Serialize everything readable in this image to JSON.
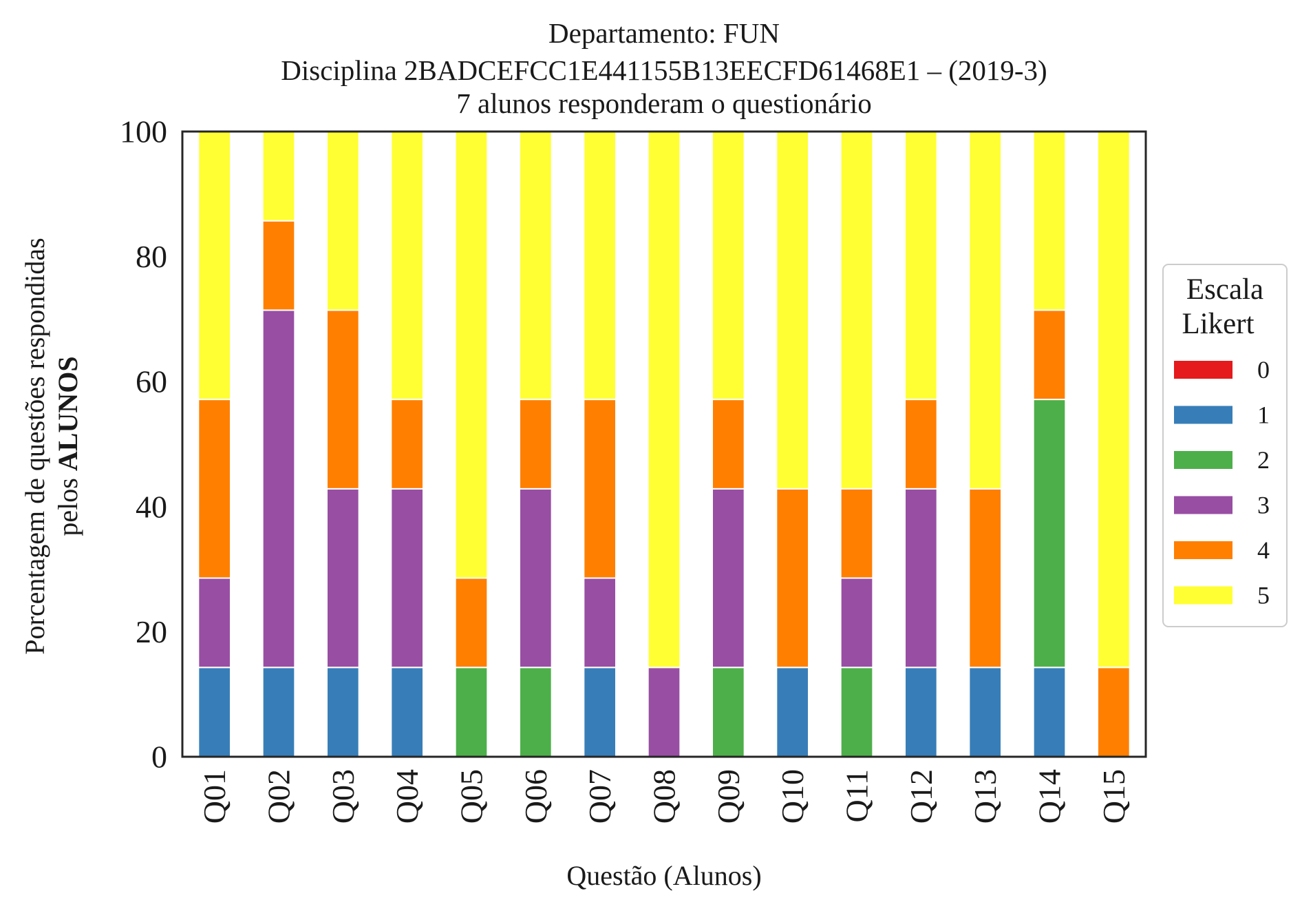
{
  "chart_data": {
    "type": "bar",
    "stacked": true,
    "title_lines": [
      "Departamento: FUN",
      "Disciplina 2BADCEFCC1E441155B13EECFD61468E1 – (2019-3)",
      "7 alunos responderam o questionário"
    ],
    "xlabel": "Questão (Alunos)",
    "ylabel_line1": "Porcentagem de questões respondidas",
    "ylabel_line2_prefix": "pelos ",
    "ylabel_line2_bold": "ALUNOS",
    "ylim": [
      0,
      100
    ],
    "yticks": [
      "0",
      "20",
      "40",
      "60",
      "80",
      "100"
    ],
    "grid": false,
    "legend": {
      "title_lines": [
        "Escala",
        "Likert"
      ],
      "position": "right"
    },
    "categories": [
      "Q01",
      "Q02",
      "Q03",
      "Q04",
      "Q05",
      "Q06",
      "Q07",
      "Q08",
      "Q09",
      "Q10",
      "Q11",
      "Q12",
      "Q13",
      "Q14",
      "Q15"
    ],
    "series": [
      {
        "name": "0",
        "color": "#e41a1c",
        "values": [
          0,
          0,
          0,
          0,
          0,
          0,
          0,
          0,
          0,
          0,
          0,
          0,
          0,
          0,
          0
        ]
      },
      {
        "name": "1",
        "color": "#377eb8",
        "values": [
          14.29,
          14.29,
          14.29,
          14.29,
          0,
          0,
          14.29,
          0,
          0,
          14.29,
          0,
          14.29,
          14.29,
          14.29,
          0
        ]
      },
      {
        "name": "2",
        "color": "#4daf4a",
        "values": [
          0,
          0,
          0,
          0,
          14.29,
          14.29,
          0,
          0,
          14.29,
          0,
          14.29,
          0,
          0,
          42.86,
          0
        ]
      },
      {
        "name": "3",
        "color": "#984ea3",
        "values": [
          14.29,
          57.14,
          28.57,
          28.57,
          0,
          28.57,
          14.29,
          14.29,
          28.57,
          0,
          14.29,
          28.57,
          0,
          0,
          0
        ]
      },
      {
        "name": "4",
        "color": "#ff7f00",
        "values": [
          28.57,
          14.29,
          28.57,
          14.29,
          14.29,
          14.29,
          28.57,
          0,
          14.29,
          28.57,
          14.29,
          14.29,
          28.57,
          14.29,
          14.29
        ]
      },
      {
        "name": "5",
        "color": "#ffff33",
        "values": [
          42.86,
          14.29,
          28.57,
          42.86,
          71.43,
          42.86,
          42.86,
          85.71,
          42.86,
          57.14,
          57.14,
          42.86,
          57.14,
          28.57,
          85.71
        ]
      }
    ]
  }
}
